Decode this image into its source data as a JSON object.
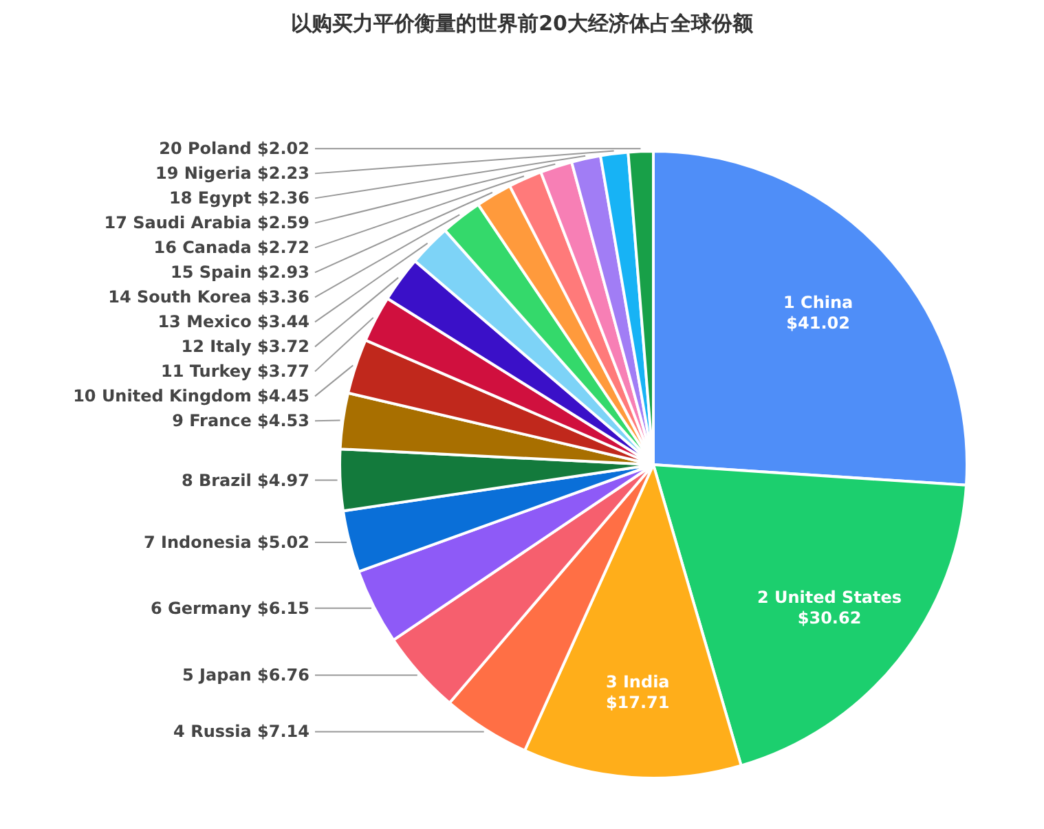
{
  "chart_data": {
    "type": "pie",
    "title": "以购买力平价衡量的世界前20大经济体占全球份额",
    "categories": [
      "1 China",
      "2 United States",
      "3 India",
      "4 Russia",
      "5 Japan",
      "6 Germany",
      "7 Indonesia",
      "8 Brazil",
      "9 France",
      "10 United Kingdom",
      "11 Turkey",
      "12 Italy",
      "13 Mexico",
      "14 South Korea",
      "15 Spain",
      "16 Canada",
      "17 Saudi Arabia",
      "18 Egypt",
      "19 Nigeria",
      "20 Poland"
    ],
    "values": [
      41.02,
      30.62,
      17.71,
      7.14,
      6.76,
      6.15,
      5.02,
      4.97,
      4.53,
      4.45,
      3.77,
      3.72,
      3.44,
      3.36,
      2.93,
      2.72,
      2.59,
      2.36,
      2.23,
      2.02
    ],
    "value_labels": [
      "$41.02",
      "$30.62",
      "$17.71",
      "$7.14",
      "$6.76",
      "$6.15",
      "$5.02",
      "$4.97",
      "$4.53",
      "$4.45",
      "$3.77",
      "$3.72",
      "$3.44",
      "$3.36",
      "$2.93",
      "$2.72",
      "$2.59",
      "$2.36",
      "$2.23",
      "$2.02"
    ],
    "colors": [
      "#4f8ef8",
      "#1ccf6e",
      "#ffae1a",
      "#ff6f45",
      "#f65f6e",
      "#8e5af7",
      "#0a6fd8",
      "#137a3c",
      "#a86f00",
      "#c0281c",
      "#d0103e",
      "#3a10c8",
      "#7dd3f7",
      "#34d96b",
      "#ff9a3c",
      "#ff7a7a",
      "#f77fb5",
      "#a17df5",
      "#17b3f5",
      "#18a048"
    ]
  }
}
